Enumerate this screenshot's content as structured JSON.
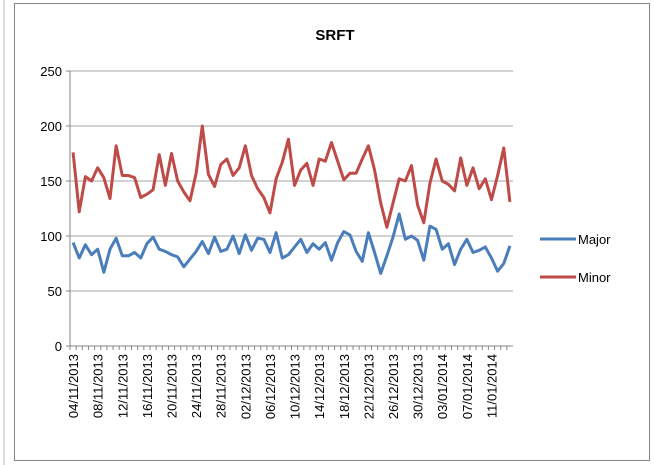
{
  "chart_data": {
    "type": "line",
    "title": "SRFT",
    "categories": [
      "04/11/2013",
      null,
      null,
      null,
      "08/11/2013",
      null,
      null,
      null,
      "12/11/2013",
      null,
      null,
      null,
      "16/11/2013",
      null,
      null,
      null,
      "20/11/2013",
      null,
      null,
      null,
      "24/11/2013",
      null,
      null,
      null,
      "28/11/2013",
      null,
      null,
      null,
      "02/12/2013",
      null,
      null,
      null,
      "06/12/2013",
      null,
      null,
      null,
      "10/12/2013",
      null,
      null,
      null,
      "14/12/2013",
      null,
      null,
      null,
      "18/12/2013",
      null,
      null,
      null,
      "22/12/2013",
      null,
      null,
      null,
      "26/12/2013",
      null,
      null,
      null,
      "30/12/2013",
      null,
      null,
      null,
      "03/01/2014",
      null,
      null,
      null,
      "07/01/2014",
      null,
      null,
      null,
      "11/01/2014",
      null,
      null,
      null
    ],
    "series": [
      {
        "name": "Major",
        "color": "#4a7ebb",
        "values": [
          94,
          80,
          92,
          83,
          88,
          67,
          88,
          98,
          82,
          82,
          85,
          80,
          93,
          99,
          88,
          86,
          83,
          81,
          72,
          79,
          86,
          95,
          84,
          99,
          86,
          88,
          100,
          84,
          101,
          87,
          98,
          97,
          85,
          103,
          80,
          83,
          90,
          97,
          85,
          93,
          88,
          94,
          78,
          94,
          104,
          101,
          86,
          77,
          103,
          85,
          66,
          82,
          99,
          120,
          97,
          100,
          96,
          78,
          109,
          106,
          88,
          93,
          74,
          88,
          97,
          85,
          87,
          90,
          80,
          68,
          75,
          91
        ]
      },
      {
        "name": "Minor",
        "color": "#be4b48",
        "values": [
          176,
          122,
          154,
          150,
          162,
          153,
          134,
          182,
          155,
          155,
          153,
          135,
          138,
          142,
          174,
          146,
          175,
          150,
          140,
          132,
          157,
          200,
          156,
          145,
          165,
          170,
          155,
          162,
          182,
          155,
          143,
          135,
          121,
          152,
          167,
          188,
          146,
          160,
          166,
          146,
          170,
          168,
          185,
          168,
          151,
          157,
          157,
          170,
          182,
          160,
          130,
          108,
          130,
          152,
          150,
          164,
          128,
          112,
          148,
          170,
          150,
          147,
          141,
          171,
          146,
          162,
          143,
          152,
          133,
          155,
          180,
          131
        ]
      }
    ],
    "ylim": [
      0,
      250
    ],
    "yticks": [
      0,
      50,
      100,
      150,
      200,
      250
    ],
    "grid": true,
    "legend": "right"
  }
}
